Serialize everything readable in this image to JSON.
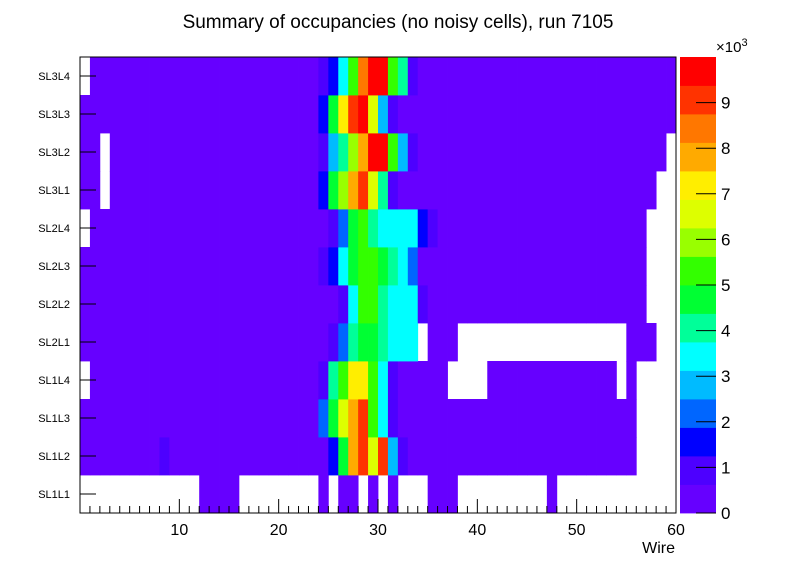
{
  "chart_data": {
    "type": "heatmap",
    "title": "Summary of occupancies (no noisy cells), run 7105",
    "xlabel": "Wire",
    "ylabel": "",
    "xlim": [
      0,
      60
    ],
    "x_ticks": [
      "10",
      "20",
      "30",
      "40",
      "50",
      "60"
    ],
    "x_tick_values": [
      10,
      20,
      30,
      40,
      50,
      60
    ],
    "categories": [
      "SL1L1",
      "SL1L2",
      "SL1L3",
      "SL1L4",
      "SL2L1",
      "SL2L2",
      "SL2L3",
      "SL2L4",
      "SL3L1",
      "SL3L2",
      "SL3L3",
      "SL3L4"
    ],
    "z_range": [
      0,
      10
    ],
    "z_ticks": [
      "0",
      "1",
      "2",
      "3",
      "4",
      "5",
      "6",
      "7",
      "8",
      "9"
    ],
    "z_multiplier": "×10",
    "z_multiplier_exp": "3",
    "z_units": "thousands",
    "grid": false,
    "rows": {
      "SL1L1": [
        0,
        0,
        0,
        0,
        0,
        0,
        0,
        0,
        0,
        0,
        0,
        0,
        0.3,
        0.3,
        0.3,
        0.3,
        0,
        0,
        0,
        0,
        0,
        0,
        0,
        0,
        0.3,
        0,
        0.3,
        0.3,
        0,
        0.3,
        0,
        0.3,
        0,
        0,
        0,
        0.3,
        0.3,
        0.3,
        0,
        0,
        0,
        0,
        0,
        0,
        0,
        0,
        0,
        0.3,
        0,
        0,
        0,
        0,
        0,
        0,
        0,
        0,
        0,
        0,
        0,
        0
      ],
      "SL1L2": [
        0.3,
        0.3,
        0.3,
        0.3,
        0.3,
        0.3,
        0.3,
        0.3,
        1,
        0.3,
        0.3,
        0.3,
        0.3,
        0.3,
        0.3,
        0.3,
        0.3,
        0.3,
        0.3,
        0.3,
        0.3,
        0.3,
        0.3,
        0.3,
        0.5,
        1.5,
        4.6,
        7.8,
        9.1,
        6.8,
        9,
        2.7,
        0.9,
        0.5,
        0.3,
        0.3,
        0.3,
        0.3,
        0.3,
        0.3,
        0.3,
        0.3,
        0.3,
        0.3,
        0.3,
        0.3,
        0.3,
        0.3,
        0.3,
        0.3,
        0.3,
        0.3,
        0.3,
        0.3,
        0.3,
        0.3,
        0,
        0,
        0,
        0
      ],
      "SL1L3": [
        0.3,
        0.3,
        0.3,
        0.3,
        0.3,
        0.3,
        0.3,
        0.3,
        0.3,
        0.3,
        0.3,
        0.3,
        0.3,
        0.3,
        0.3,
        0.3,
        0.3,
        0.3,
        0.3,
        0.3,
        0.3,
        0.3,
        0.3,
        0.3,
        2.3,
        4.5,
        6.5,
        8.1,
        9.2,
        5.2,
        3.4,
        1.2,
        0.5,
        0.3,
        0.3,
        0.3,
        0.3,
        0.3,
        0.3,
        0.3,
        0.3,
        0.3,
        0.3,
        0.3,
        0.3,
        0.3,
        0.3,
        0.3,
        0.3,
        0.3,
        0.3,
        0.3,
        0.3,
        0.3,
        0.3,
        0.3,
        0,
        0,
        0,
        0
      ],
      "SL1L4": [
        0,
        0.3,
        0.3,
        0.3,
        0.3,
        0.3,
        0.3,
        0.3,
        0.3,
        0.3,
        0.3,
        0.3,
        0.3,
        0.3,
        0.3,
        0.3,
        0.3,
        0.3,
        0.3,
        0.3,
        0.3,
        0.3,
        0.3,
        0.5,
        1,
        3.8,
        5.6,
        7,
        7,
        5.2,
        3.4,
        1.2,
        0.5,
        0.3,
        0.3,
        0.3,
        0.3,
        0,
        0,
        0,
        0,
        0.3,
        0.3,
        0.3,
        0.3,
        0.3,
        0.3,
        0.3,
        0.3,
        0.3,
        0.3,
        0.3,
        0.3,
        0.3,
        0,
        0.3,
        0,
        0,
        0,
        0
      ],
      "SL2L1": [
        0.3,
        0.3,
        0.3,
        0.3,
        0.3,
        0.3,
        0.3,
        0.3,
        0.3,
        0.3,
        0.3,
        0.3,
        0.3,
        0.3,
        0.3,
        0.3,
        0.3,
        0.3,
        0.3,
        0.3,
        0.3,
        0.3,
        0.3,
        0.3,
        0.3,
        1,
        2.4,
        3.8,
        4.6,
        4.8,
        3.8,
        3.6,
        3.6,
        3.3,
        0,
        0.3,
        0.3,
        0.3,
        0,
        0,
        0,
        0,
        0,
        0,
        0,
        0,
        0,
        0,
        0,
        0,
        0,
        0,
        0,
        0,
        0,
        0.3,
        0.3,
        0.3,
        0,
        0
      ],
      "SL2L2": [
        0.3,
        0.3,
        0.3,
        0.3,
        0.3,
        0.3,
        0.3,
        0.3,
        0.3,
        0.3,
        0.3,
        0.3,
        0.3,
        0.3,
        0.3,
        0.3,
        0.3,
        0.3,
        0.3,
        0.3,
        0.3,
        0.3,
        0.3,
        0.3,
        0.3,
        0.3,
        1.2,
        3.7,
        5.2,
        5.2,
        4.2,
        3.6,
        3.6,
        3.3,
        1.1,
        0.5,
        0.3,
        0.3,
        0.3,
        0.3,
        0.3,
        0.3,
        0.3,
        0.3,
        0.3,
        0.3,
        0.3,
        0.3,
        0.3,
        0.3,
        0.3,
        0.3,
        0.3,
        0.3,
        0.3,
        0.3,
        0.3,
        0,
        0,
        0
      ],
      "SL2L3": [
        0.3,
        0.3,
        0.3,
        0.3,
        0.3,
        0.3,
        0.3,
        0.3,
        0.3,
        0.3,
        0.3,
        0.3,
        0.3,
        0.3,
        0.3,
        0.3,
        0.3,
        0.3,
        0.3,
        0.3,
        0.3,
        0.3,
        0.3,
        0.3,
        0.8,
        1.8,
        3.2,
        4.6,
        5.2,
        5.1,
        4.4,
        4,
        3.6,
        2.1,
        0.6,
        0.3,
        0.3,
        0.3,
        0.3,
        0.3,
        0.3,
        0.3,
        0.3,
        0.3,
        0.3,
        0.3,
        0.3,
        0.3,
        0.3,
        0.3,
        0.3,
        0.3,
        0.3,
        0.3,
        0.3,
        0.3,
        0.3,
        0,
        0,
        0
      ],
      "SL2L4": [
        0,
        0.3,
        0.3,
        0.3,
        0.3,
        0.3,
        0.3,
        0.3,
        0.3,
        0.3,
        0.3,
        0.3,
        0.3,
        0.3,
        0.3,
        0.3,
        0.3,
        0.3,
        0.3,
        0.3,
        0.3,
        0.3,
        0.3,
        0.3,
        0.3,
        1,
        2.4,
        4.4,
        5.2,
        4.2,
        3.7,
        3.5,
        3.5,
        3.4,
        1.7,
        1,
        0.6,
        0.6,
        0.3,
        0.3,
        0.3,
        0.3,
        0.3,
        0.3,
        0.3,
        0.3,
        0.3,
        0.3,
        0.3,
        0.3,
        0.3,
        0.3,
        0.3,
        0.3,
        0.3,
        0.3,
        0.3,
        0,
        0,
        0
      ],
      "SL3L1": [
        0.3,
        0.3,
        0,
        0.3,
        0.3,
        0.3,
        0.3,
        0.3,
        0.3,
        0.3,
        0.3,
        0.3,
        0.3,
        0.3,
        0.3,
        0.3,
        0.3,
        0.3,
        0.3,
        0.3,
        0.3,
        0.3,
        0.3,
        0.5,
        1.3,
        4.6,
        5.8,
        8,
        9.1,
        6.6,
        3.8,
        1,
        0.5,
        0.3,
        0.3,
        0.3,
        0.3,
        0.3,
        0.3,
        0.3,
        0.3,
        0.3,
        0.3,
        0.3,
        0.3,
        0.3,
        0.3,
        0.3,
        0.3,
        0.3,
        0.3,
        0.3,
        0.3,
        0.3,
        0.3,
        0.3,
        0.3,
        0.3,
        0,
        0
      ],
      "SL3L2": [
        0.3,
        0.3,
        0,
        0.3,
        0.3,
        0.3,
        0.3,
        0.3,
        0.3,
        0.3,
        0.3,
        0.3,
        0.3,
        0.3,
        0.3,
        0.3,
        0.3,
        0.3,
        0.3,
        0.3,
        0.3,
        0.3,
        0.3,
        0.3,
        0.7,
        2.6,
        4.2,
        6.2,
        8,
        9.6,
        9.5,
        5.3,
        2.8,
        0.7,
        0.3,
        0.3,
        0.3,
        0.3,
        0.3,
        0.3,
        0.3,
        0.3,
        0.3,
        0.3,
        0.3,
        0.3,
        0.3,
        0.3,
        0.3,
        0.3,
        0.3,
        0.3,
        0.3,
        0.3,
        0.3,
        0.3,
        0.3,
        0.3,
        0.3,
        0
      ],
      "SL3L3": [
        0.3,
        0.3,
        0.3,
        0.3,
        0.3,
        0.3,
        0.3,
        0.3,
        0.3,
        0.3,
        0.3,
        0.3,
        0.3,
        0.3,
        0.3,
        0.3,
        0.3,
        0.3,
        0.3,
        0.3,
        0.3,
        0.3,
        0.3,
        0.5,
        1.5,
        4.4,
        7.2,
        9,
        9.6,
        6.5,
        3.1,
        0.9,
        0.3,
        0.3,
        0.3,
        0.3,
        0.3,
        0.3,
        0.3,
        0.3,
        0.3,
        0.3,
        0.3,
        0.3,
        0.3,
        0.3,
        0.3,
        0.3,
        0.3,
        0.3,
        0.3,
        0.3,
        0.3,
        0.3,
        0.3,
        0.3,
        0.3,
        0.3,
        0.3,
        0.3
      ],
      "SL3L4": [
        0,
        0.3,
        0.3,
        0.3,
        0.3,
        0.3,
        0.3,
        0.3,
        0.3,
        0.3,
        0.3,
        0.3,
        0.3,
        0.3,
        0.3,
        0.3,
        0.3,
        0.3,
        0.3,
        0.3,
        0.3,
        0.3,
        0.3,
        0.3,
        0.7,
        1.5,
        3.7,
        5.6,
        8.3,
        9.6,
        9.5,
        5.6,
        3.8,
        1,
        0.5,
        0.3,
        0.3,
        0.3,
        0.3,
        0.3,
        0.3,
        0.3,
        0.3,
        0.3,
        0.3,
        0.3,
        0.3,
        0.3,
        0.3,
        0.3,
        0.3,
        0.3,
        0.3,
        0.3,
        0.3,
        0.3,
        0.3,
        0.3,
        0.3,
        0.3
      ]
    },
    "palette": [
      "#6600ff",
      "#4d00ff",
      "#0000ff",
      "#0066ff",
      "#00bbff",
      "#00ffff",
      "#00ff99",
      "#00ff33",
      "#33ff00",
      "#99ff00",
      "#ddff00",
      "#ffee00",
      "#ffaa00",
      "#ff7700",
      "#ff3300",
      "#ff0000"
    ]
  }
}
